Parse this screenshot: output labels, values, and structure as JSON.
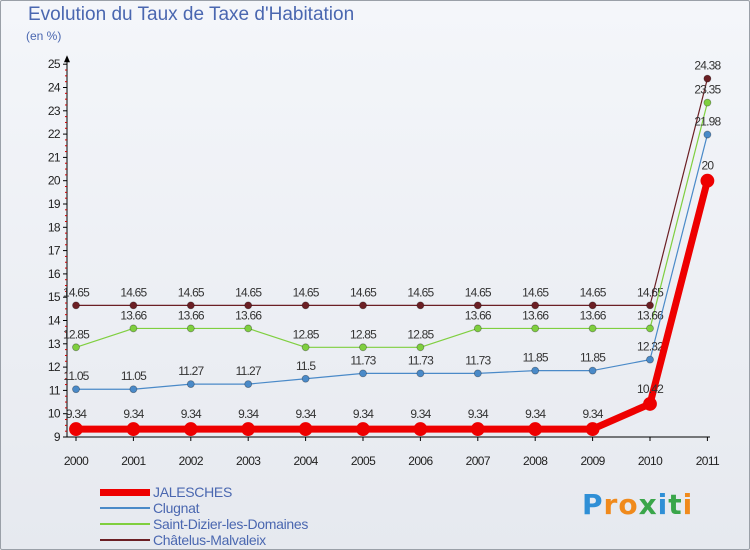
{
  "chart_data": {
    "type": "line",
    "title": "Evolution du Taux de Taxe d'Habitation",
    "unit_label": "(en %)",
    "xlabel": "",
    "ylabel": "",
    "categories": [
      "2000",
      "2001",
      "2002",
      "2003",
      "2004",
      "2005",
      "2006",
      "2007",
      "2008",
      "2009",
      "2010",
      "2011"
    ],
    "ylim": [
      9,
      25
    ],
    "yticks": [
      "9",
      "10",
      "11",
      "12",
      "13",
      "14",
      "15",
      "16",
      "17",
      "18",
      "19",
      "20",
      "21",
      "22",
      "23",
      "24",
      "25"
    ],
    "series": [
      {
        "name": "Châtelus-Malvaleix",
        "color": "#6b1f24",
        "values": [
          14.65,
          14.65,
          14.65,
          14.65,
          14.65,
          14.65,
          14.65,
          14.65,
          14.65,
          14.65,
          14.65,
          24.38
        ],
        "labels": [
          "14.65",
          "14.65",
          "14.65",
          "14.65",
          "14.65",
          "14.65",
          "14.65",
          "14.65",
          "14.65",
          "14.65",
          "14.65",
          "24.38"
        ]
      },
      {
        "name": "Saint-Dizier-les-Domaines",
        "color": "#7fcf3f",
        "values": [
          12.85,
          13.66,
          13.66,
          13.66,
          12.85,
          12.85,
          12.85,
          13.66,
          13.66,
          13.66,
          13.66,
          23.35
        ],
        "labels": [
          "12.85",
          "13.66",
          "13.66",
          "13.66",
          "12.85",
          "12.85",
          "12.85",
          "13.66",
          "13.66",
          "13.66",
          "13.66",
          "23.35"
        ]
      },
      {
        "name": "Clugnat",
        "color": "#4a8ac8",
        "values": [
          11.05,
          11.05,
          11.27,
          11.27,
          11.5,
          11.73,
          11.73,
          11.73,
          11.85,
          11.85,
          12.32,
          21.98
        ],
        "labels": [
          "11.05",
          "11.05",
          "11.27",
          "11.27",
          "11.5",
          "11.73",
          "11.73",
          "11.73",
          "11.85",
          "11.85",
          "12.32",
          "21.98"
        ]
      },
      {
        "name": "JALESCHES",
        "color": "#ee0000",
        "values": [
          9.34,
          9.34,
          9.34,
          9.34,
          9.34,
          9.34,
          9.34,
          9.34,
          9.34,
          9.34,
          10.42,
          20
        ],
        "labels": [
          "9.34",
          "9.34",
          "9.34",
          "9.34",
          "9.34",
          "9.34",
          "9.34",
          "9.34",
          "9.34",
          "9.34",
          "10.42",
          "20"
        ]
      }
    ],
    "legend": [
      "JALESCHES",
      "Clugnat",
      "Saint-Dizier-les-Domaines",
      "Châtelus-Malvaleix"
    ],
    "grid": false
  },
  "logo": {
    "letters": [
      "P",
      "r",
      "o",
      "x",
      "i",
      "t",
      "i"
    ],
    "colors": [
      "#2f8fd6",
      "#f08a1c",
      "#f08a1c",
      "#3aa64a",
      "#2f8fd6",
      "#3aa64a",
      "#f08a1c"
    ]
  }
}
